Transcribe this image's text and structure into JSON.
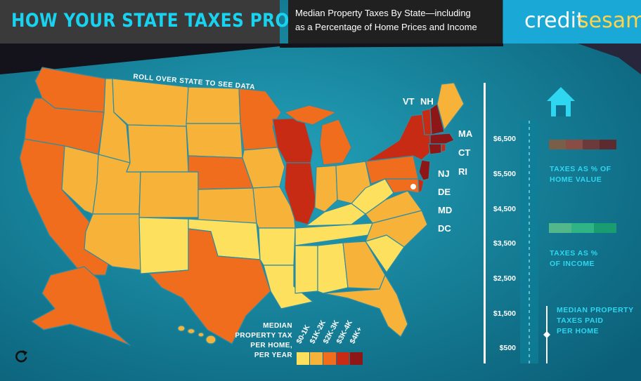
{
  "header": {
    "title": "HOW YOUR STATE TAXES PROPERTY",
    "subtitle_line1": "Median Property Taxes By State—including",
    "subtitle_line2": "as a Percentage of Home Prices and Income",
    "brand_part1": "credit",
    "brand_part2": "sesame"
  },
  "map": {
    "hint": "ROLL OVER STATE TO SEE DATA",
    "northeast_labels": [
      "VT",
      "NH",
      "MA",
      "CT",
      "RI",
      "NJ",
      "DE",
      "MD",
      "DC"
    ]
  },
  "legend": {
    "title_lines": [
      "MEDIAN",
      "PROPERTY TAX",
      "PER HOME,",
      "PER YEAR"
    ],
    "ranges": [
      "$0-1K",
      "$1K-2K",
      "$2K-3K",
      "$3K-4K",
      "$4K+"
    ],
    "colors": [
      "#fde15e",
      "#f7b23a",
      "#ef6d1d",
      "#c82b14",
      "#8d1616"
    ]
  },
  "scale": {
    "ticks": [
      "$6,500",
      "$5,500",
      "$4,500",
      "$3,500",
      "$2,500",
      "$1,500",
      "$500"
    ]
  },
  "panel": {
    "home_value_label_lines": [
      "TAXES AS % OF",
      "HOME VALUE"
    ],
    "income_label_lines": [
      "TAXES AS %",
      "OF INCOME"
    ],
    "median_label_lines": [
      "MEDIAN PROPERTY",
      "TAXES PAID",
      "PER HOME"
    ]
  },
  "colors": {
    "ocean": "#1a8ea7",
    "state_border": "#2b8da5",
    "title_cyan": "#19d2ef",
    "brand_bg": "#1aa9d7",
    "home_value_bar": [
      "#7a5f48",
      "#8a4d46",
      "#6c3a3a",
      "#5b2b30"
    ],
    "income_bar": [
      "#52b78a",
      "#2fb486",
      "#189c70"
    ]
  },
  "icons": [
    "house-icon",
    "refresh-icon"
  ]
}
